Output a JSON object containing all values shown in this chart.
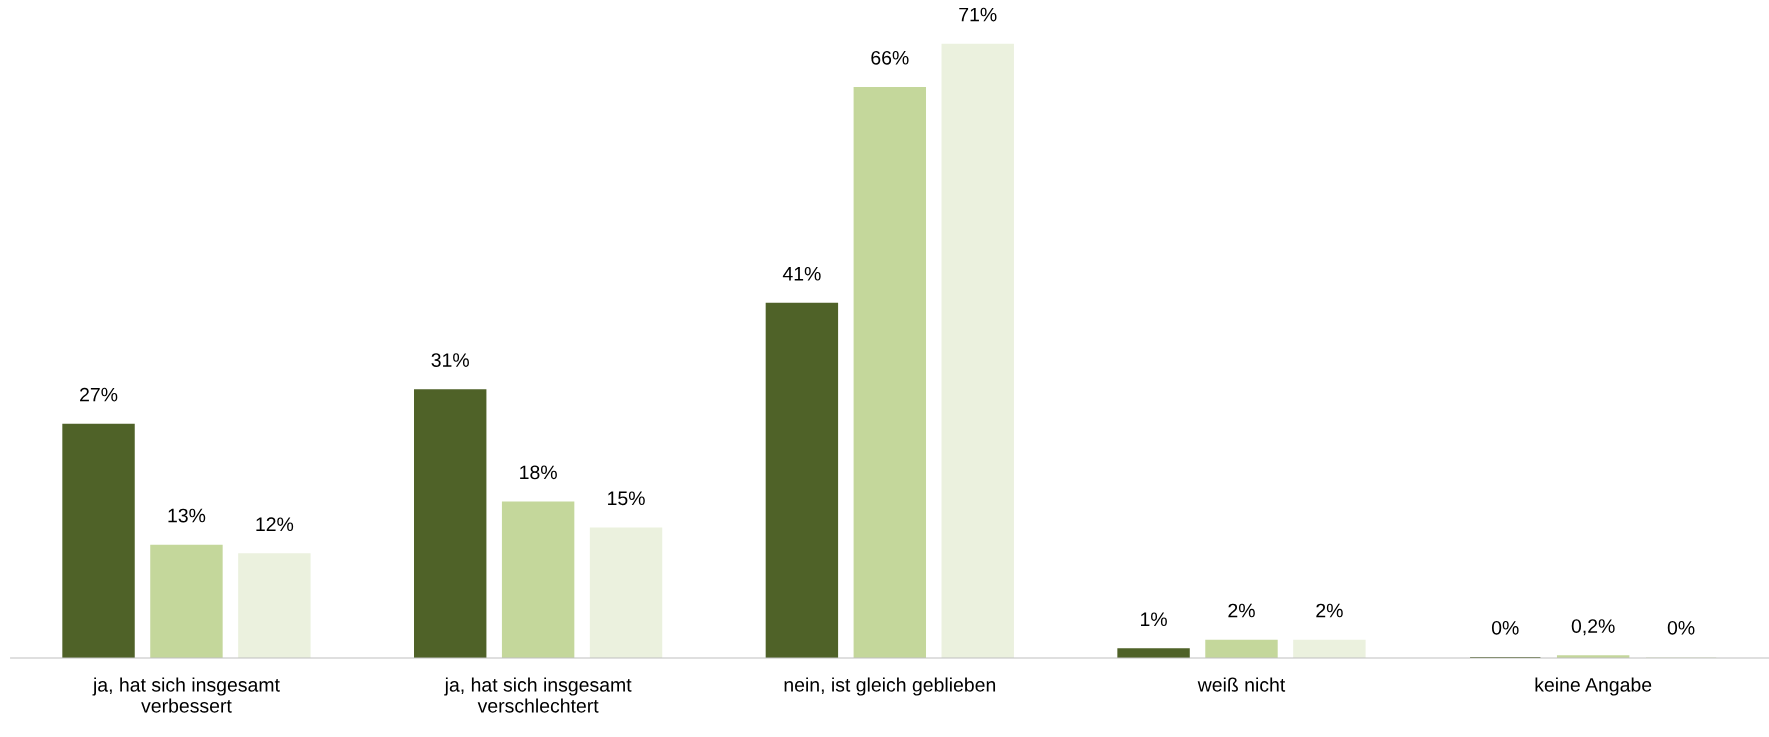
{
  "chart_data": {
    "type": "bar",
    "categories": [
      "ja, hat sich insgesamt\nverbessert",
      "ja, hat sich insgesamt\nverschlechtert",
      "nein, ist gleich geblieben",
      "weiß nicht",
      "keine Angabe"
    ],
    "series": [
      {
        "color": "#4f6228",
        "values": [
          27,
          31,
          41,
          1,
          0
        ],
        "value_labels": [
          "27%",
          "31%",
          "41%",
          "1%",
          "0%"
        ]
      },
      {
        "color": "#c4d79b",
        "values": [
          13,
          18,
          66,
          2,
          0.2
        ],
        "value_labels": [
          "13%",
          "18%",
          "66%",
          "2%",
          "0,2%"
        ]
      },
      {
        "color": "#ebf1de",
        "values": [
          12,
          15,
          71,
          2,
          0
        ],
        "value_labels": [
          "12%",
          "15%",
          "71%",
          "2%",
          "0%"
        ]
      }
    ]
  }
}
